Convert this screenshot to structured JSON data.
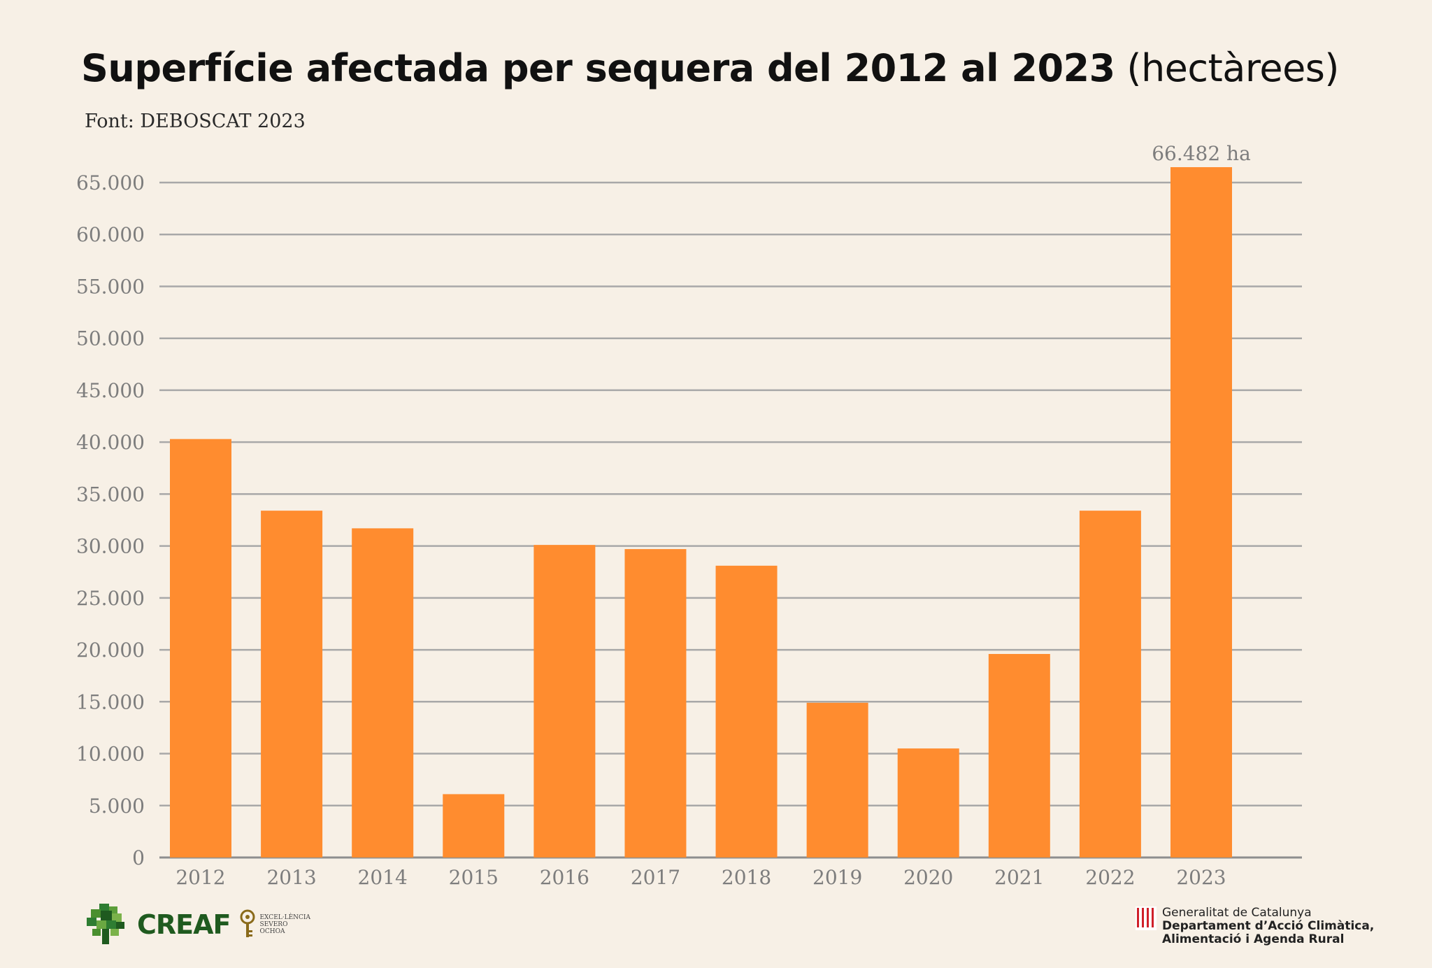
{
  "header": {
    "title_main": "Superfície afectada per sequera del 2012 al 2023",
    "title_unit": "(hectàrees)",
    "source": "Font: DEBOSCAT 2023"
  },
  "chart_data": {
    "type": "bar",
    "title": "Superfície afectada per sequera del 2012 al 2023 (hectàrees)",
    "xlabel": "",
    "ylabel": "",
    "categories": [
      "2012",
      "2013",
      "2014",
      "2015",
      "2016",
      "2017",
      "2018",
      "2019",
      "2020",
      "2021",
      "2022",
      "2023"
    ],
    "values": [
      40300,
      33400,
      31700,
      6100,
      30100,
      29700,
      28100,
      14900,
      10500,
      19600,
      33400,
      66482
    ],
    "ylim": [
      0,
      65000
    ],
    "yticks": [
      0,
      5000,
      10000,
      15000,
      20000,
      25000,
      30000,
      35000,
      40000,
      45000,
      50000,
      55000,
      60000,
      65000
    ],
    "ytick_labels": [
      "0",
      "5.000",
      "10.000",
      "15.000",
      "20.000",
      "25.000",
      "30.000",
      "35.000",
      "40.000",
      "45.000",
      "50.000",
      "55.000",
      "60.000",
      "65.000"
    ],
    "annotations": [
      {
        "category": "2023",
        "text": "66.482 ha"
      }
    ],
    "grid": true,
    "bar_color": "#ff8c2f",
    "grid_color": "#a8a8a8",
    "tick_color": "#7d7d7d"
  },
  "footer": {
    "creaf_label": "CREAF",
    "severo_label": "EXCEL·LÈNCIA\nSEVERO\nOCHOA",
    "gencat_line1": "Generalitat de Catalunya",
    "gencat_line2": "Departament d’Acció Climàtica,",
    "gencat_line3": "Alimentació i Agenda Rural"
  },
  "colors": {
    "background": "#f7f0e6",
    "creaf_green": "#1f5a1f",
    "severo_gold": "#8a6a1a",
    "gencat_red": "#d0202a"
  }
}
